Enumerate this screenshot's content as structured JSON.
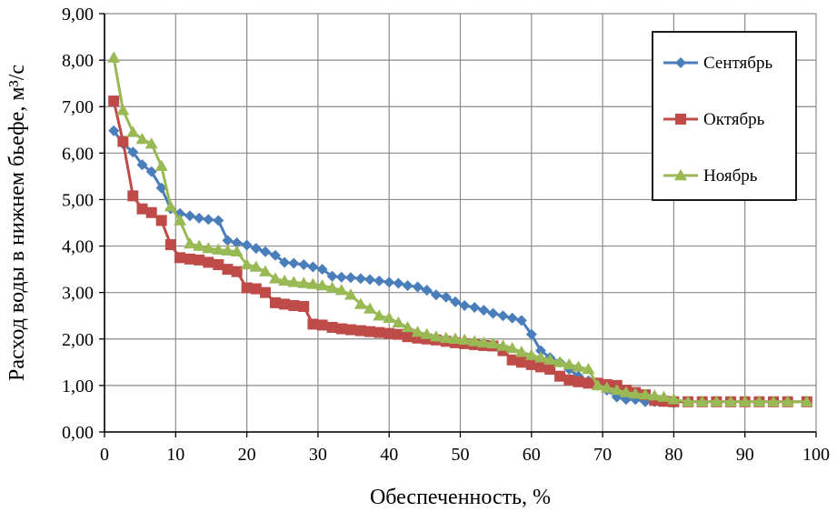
{
  "chart_data": {
    "type": "line",
    "xlabel": "Обеспеченность, %",
    "ylabel": "Расход воды в нижнем бьефе, м³/с",
    "xlim": [
      0,
      100
    ],
    "ylim": [
      0,
      9
    ],
    "x_ticks": [
      "0",
      "10",
      "20",
      "30",
      "40",
      "50",
      "60",
      "70",
      "80",
      "90",
      "100"
    ],
    "y_ticks": [
      "0,00",
      "1,00",
      "2,00",
      "3,00",
      "4,00",
      "5,00",
      "6,00",
      "7,00",
      "8,00",
      "9,00"
    ],
    "grid": true,
    "legend_position": "top-right",
    "series": [
      {
        "name": "Сентябрь",
        "color": "#4a7ebb",
        "marker": "diamond",
        "points": [
          [
            1.3,
            6.48
          ],
          [
            2.6,
            6.2
          ],
          [
            4,
            6.02
          ],
          [
            5.3,
            5.75
          ],
          [
            6.6,
            5.6
          ],
          [
            8,
            5.25
          ],
          [
            9.3,
            4.8
          ],
          [
            10.6,
            4.7
          ],
          [
            12,
            4.65
          ],
          [
            13.3,
            4.6
          ],
          [
            14.6,
            4.57
          ],
          [
            16,
            4.55
          ],
          [
            17.3,
            4.12
          ],
          [
            18.6,
            4.07
          ],
          [
            20,
            4.02
          ],
          [
            21.3,
            3.95
          ],
          [
            22.6,
            3.88
          ],
          [
            24,
            3.8
          ],
          [
            25.3,
            3.65
          ],
          [
            26.6,
            3.63
          ],
          [
            28,
            3.6
          ],
          [
            29.3,
            3.55
          ],
          [
            30.6,
            3.5
          ],
          [
            32,
            3.35
          ],
          [
            33.3,
            3.33
          ],
          [
            34.6,
            3.32
          ],
          [
            36,
            3.3
          ],
          [
            37.3,
            3.28
          ],
          [
            38.6,
            3.25
          ],
          [
            40,
            3.22
          ],
          [
            41.3,
            3.2
          ],
          [
            42.6,
            3.15
          ],
          [
            44,
            3.12
          ],
          [
            45.3,
            3.05
          ],
          [
            46.6,
            2.95
          ],
          [
            48,
            2.9
          ],
          [
            49.3,
            2.8
          ],
          [
            50.6,
            2.72
          ],
          [
            52,
            2.68
          ],
          [
            53.3,
            2.62
          ],
          [
            54.6,
            2.55
          ],
          [
            56,
            2.5
          ],
          [
            57.3,
            2.45
          ],
          [
            58.6,
            2.4
          ],
          [
            60,
            2.1
          ],
          [
            61.3,
            1.75
          ],
          [
            62.6,
            1.6
          ],
          [
            64,
            1.5
          ],
          [
            65.3,
            1.35
          ],
          [
            66.6,
            1.2
          ],
          [
            68,
            1.1
          ],
          [
            69.3,
            1.0
          ],
          [
            70.6,
            0.9
          ],
          [
            72,
            0.75
          ],
          [
            73.3,
            0.7
          ],
          [
            74.6,
            0.7
          ],
          [
            76,
            0.65
          ],
          [
            77.3,
            0.65
          ],
          [
            78.6,
            0.65
          ],
          [
            80,
            0.62
          ]
        ]
      },
      {
        "name": "Октябрь",
        "color": "#be4b48",
        "marker": "square",
        "points": [
          [
            1.3,
            7.12
          ],
          [
            2.6,
            6.25
          ],
          [
            4,
            5.08
          ],
          [
            5.3,
            4.8
          ],
          [
            6.6,
            4.72
          ],
          [
            8,
            4.55
          ],
          [
            9.3,
            4.03
          ],
          [
            10.6,
            3.75
          ],
          [
            12,
            3.72
          ],
          [
            13.3,
            3.7
          ],
          [
            14.6,
            3.65
          ],
          [
            16,
            3.6
          ],
          [
            17.3,
            3.5
          ],
          [
            18.6,
            3.45
          ],
          [
            20,
            3.1
          ],
          [
            21.3,
            3.08
          ],
          [
            22.6,
            3.0
          ],
          [
            24,
            2.78
          ],
          [
            25.3,
            2.75
          ],
          [
            26.6,
            2.72
          ],
          [
            28,
            2.7
          ],
          [
            29.3,
            2.32
          ],
          [
            30.6,
            2.3
          ],
          [
            32,
            2.25
          ],
          [
            33.3,
            2.22
          ],
          [
            34.6,
            2.2
          ],
          [
            36,
            2.18
          ],
          [
            37.3,
            2.16
          ],
          [
            38.6,
            2.14
          ],
          [
            40,
            2.12
          ],
          [
            41.3,
            2.1
          ],
          [
            42.6,
            2.05
          ],
          [
            44,
            2.02
          ],
          [
            45.3,
            2.0
          ],
          [
            46.6,
            1.98
          ],
          [
            48,
            1.95
          ],
          [
            49.3,
            1.92
          ],
          [
            50.6,
            1.9
          ],
          [
            52,
            1.88
          ],
          [
            53.3,
            1.86
          ],
          [
            54.6,
            1.85
          ],
          [
            56,
            1.75
          ],
          [
            57.3,
            1.55
          ],
          [
            58.6,
            1.5
          ],
          [
            60,
            1.45
          ],
          [
            61.3,
            1.4
          ],
          [
            62.6,
            1.35
          ],
          [
            64,
            1.2
          ],
          [
            65.3,
            1.12
          ],
          [
            66.6,
            1.08
          ],
          [
            68,
            1.05
          ],
          [
            69.3,
            1.05
          ],
          [
            70.6,
            1.02
          ],
          [
            72,
            1.0
          ],
          [
            73.3,
            0.9
          ],
          [
            74.6,
            0.85
          ],
          [
            76,
            0.8
          ],
          [
            77.3,
            0.68
          ],
          [
            78.6,
            0.66
          ],
          [
            80,
            0.65
          ],
          [
            82,
            0.65
          ],
          [
            84,
            0.65
          ],
          [
            86,
            0.65
          ],
          [
            88,
            0.65
          ],
          [
            90,
            0.65
          ],
          [
            92,
            0.65
          ],
          [
            94,
            0.65
          ],
          [
            96,
            0.65
          ],
          [
            98.7,
            0.65
          ]
        ]
      },
      {
        "name": "Ноябрь",
        "color": "#98b954",
        "marker": "triangle",
        "points": [
          [
            1.3,
            8.05
          ],
          [
            2.6,
            6.92
          ],
          [
            4,
            6.45
          ],
          [
            5.3,
            6.3
          ],
          [
            6.6,
            6.2
          ],
          [
            8,
            5.72
          ],
          [
            9.3,
            4.85
          ],
          [
            10.6,
            4.55
          ],
          [
            12,
            4.05
          ],
          [
            13.3,
            4.0
          ],
          [
            14.6,
            3.95
          ],
          [
            16,
            3.92
          ],
          [
            17.3,
            3.9
          ],
          [
            18.6,
            3.88
          ],
          [
            20,
            3.6
          ],
          [
            21.3,
            3.55
          ],
          [
            22.6,
            3.45
          ],
          [
            24,
            3.3
          ],
          [
            25.3,
            3.25
          ],
          [
            26.6,
            3.22
          ],
          [
            28,
            3.2
          ],
          [
            29.3,
            3.18
          ],
          [
            30.6,
            3.15
          ],
          [
            32,
            3.1
          ],
          [
            33.3,
            3.05
          ],
          [
            34.6,
            2.95
          ],
          [
            36,
            2.75
          ],
          [
            37.3,
            2.65
          ],
          [
            38.6,
            2.5
          ],
          [
            40,
            2.45
          ],
          [
            41.3,
            2.35
          ],
          [
            42.6,
            2.25
          ],
          [
            44,
            2.15
          ],
          [
            45.3,
            2.1
          ],
          [
            46.6,
            2.05
          ],
          [
            48,
            2.02
          ],
          [
            49.3,
            2.0
          ],
          [
            50.6,
            1.98
          ],
          [
            52,
            1.95
          ],
          [
            53.3,
            1.92
          ],
          [
            54.6,
            1.9
          ],
          [
            56,
            1.85
          ],
          [
            57.3,
            1.8
          ],
          [
            58.6,
            1.72
          ],
          [
            60,
            1.65
          ],
          [
            61.3,
            1.6
          ],
          [
            62.6,
            1.55
          ],
          [
            64,
            1.5
          ],
          [
            65.3,
            1.45
          ],
          [
            66.6,
            1.4
          ],
          [
            68,
            1.35
          ],
          [
            69.3,
            1.0
          ],
          [
            70.6,
            0.95
          ],
          [
            72,
            0.9
          ],
          [
            73.3,
            0.85
          ],
          [
            74.6,
            0.82
          ],
          [
            76,
            0.8
          ],
          [
            77.3,
            0.78
          ],
          [
            78.6,
            0.75
          ],
          [
            80,
            0.7
          ],
          [
            82,
            0.65
          ],
          [
            84,
            0.65
          ],
          [
            86,
            0.65
          ],
          [
            88,
            0.65
          ],
          [
            90,
            0.65
          ],
          [
            92,
            0.65
          ],
          [
            94,
            0.65
          ],
          [
            96,
            0.65
          ],
          [
            98.7,
            0.65
          ]
        ]
      }
    ]
  }
}
